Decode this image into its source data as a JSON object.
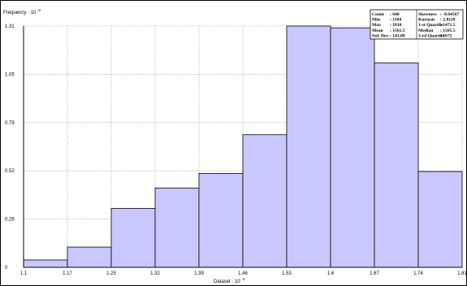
{
  "chart_data": {
    "type": "bar",
    "histogram": true,
    "ylabel": "Frequency",
    "ylabel_exponent": "-2",
    "ylabel_prefix": "· 10",
    "xlabel": "Dataset",
    "xlabel_exponent": "-3",
    "xlabel_prefix": "· 10",
    "xlim": [
      1.1,
      1.81
    ],
    "ylim": [
      0,
      1.31
    ],
    "x_ticks": [
      "1.1",
      "1.17",
      "1.25",
      "1.32",
      "1.39",
      "1.46",
      "1.53",
      "1.6",
      "1.67",
      "1.74",
      "1.81"
    ],
    "y_ticks": [
      "0",
      "0.26",
      "0.52",
      "0.79",
      "1.05",
      "1.31"
    ],
    "bin_edges": [
      1.1,
      1.171,
      1.242,
      1.313,
      1.384,
      1.455,
      1.526,
      1.597,
      1.668,
      1.739,
      1.81
    ],
    "values": [
      0.04,
      0.11,
      0.32,
      0.43,
      0.51,
      0.72,
      1.31,
      1.3,
      1.11,
      0.52
    ],
    "grid": true,
    "bar_color": "#c8c8ff",
    "bar_edge_color": "#000000",
    "grid_color": "#9a9a9a",
    "stats": {
      "left": [
        {
          "label": "Count",
          "value": ": 640"
        },
        {
          "label": "Min",
          "value": ": 1104"
        },
        {
          "label": "Max",
          "value": ": 1810"
        },
        {
          "label": "Mean",
          "value": ": 1561.5"
        },
        {
          "label": "Std. Dev.",
          "value": ": 143.88"
        }
      ],
      "right": [
        {
          "label": "Skewness",
          "value": ": -0.64567"
        },
        {
          "label": "Kurtosis",
          "value": ": 2.8118"
        },
        {
          "label": "1-st Quartile",
          "value": ": 1471.5"
        },
        {
          "label": "Median",
          "value": ": 1585.5"
        },
        {
          "label": "3-rd Quartile",
          "value": ": 1672"
        }
      ]
    }
  }
}
